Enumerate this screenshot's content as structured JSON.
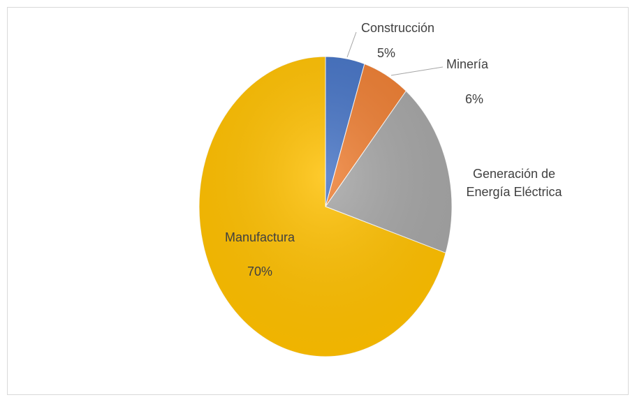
{
  "chart_data": {
    "type": "pie",
    "title": "",
    "slices": [
      {
        "label": "Construcción",
        "value": 5,
        "value_label": "5%",
        "color": "#4472c4"
      },
      {
        "label": "Minería",
        "value": 6,
        "value_label": "6%",
        "color": "#ed7d31"
      },
      {
        "label": "Generación de\nEnergía Eléctrica",
        "value": 19,
        "value_label": "",
        "color": "#a5a5a5"
      },
      {
        "label": "Manufactura",
        "value": 70,
        "value_label": "70%",
        "color": "#ffc000"
      }
    ],
    "start_angle": "12 o'clock",
    "direction": "clockwise",
    "legend": "none"
  }
}
